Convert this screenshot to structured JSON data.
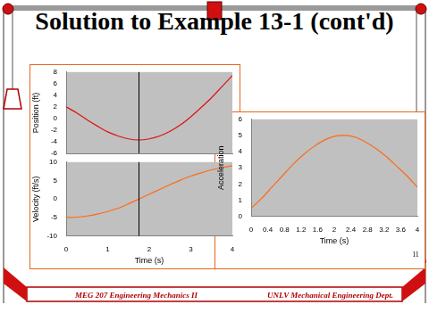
{
  "title": "Solution to Example 13-1 (cont'd)",
  "footer_left": "MEG 207 Engineering Mechanics II",
  "footer_right": "UNLV Mechanical Engineering Dept.",
  "page_number": "11",
  "chart_data": [
    {
      "type": "line",
      "y_label": "Position (ft)",
      "x": [
        0,
        0.25,
        0.5,
        0.75,
        1,
        1.25,
        1.5,
        1.75,
        2,
        2.25,
        2.5,
        2.75,
        3,
        3.25,
        3.5,
        3.75,
        4
      ],
      "values": [
        2.0,
        1.0,
        -0.2,
        -1.3,
        -2.3,
        -3.0,
        -3.5,
        -3.7,
        -3.5,
        -3.0,
        -2.2,
        -1.1,
        0.3,
        1.9,
        3.6,
        5.5,
        7.4
      ],
      "color": "#e01010",
      "xlim": [
        0,
        4
      ],
      "ylim": [
        -6,
        8
      ],
      "yticks": [
        -6,
        -4,
        -2,
        0,
        2,
        4,
        6,
        8
      ],
      "grid": false,
      "tick_labels": "y",
      "vline_x": 1.75
    },
    {
      "type": "line",
      "y_label": "Velocity (ft/s)",
      "x_label": "Time (s)",
      "x": [
        0,
        0.25,
        0.5,
        0.75,
        1,
        1.25,
        1.5,
        1.75,
        2,
        2.25,
        2.5,
        2.75,
        3,
        3.25,
        3.5,
        3.75,
        4
      ],
      "values": [
        -5.0,
        -4.9,
        -4.6,
        -4.1,
        -3.4,
        -2.5,
        -1.3,
        0.0,
        1.3,
        2.6,
        3.9,
        5.1,
        6.2,
        7.1,
        7.9,
        8.5,
        9.0
      ],
      "color": "#ff6a13",
      "xlim": [
        0,
        4
      ],
      "ylim": [
        -10,
        10
      ],
      "xticks": [
        0,
        1,
        2,
        3,
        4
      ],
      "yticks": [
        -10,
        -5,
        0,
        5,
        10
      ],
      "grid": false,
      "vline_x": 1.75
    },
    {
      "type": "line",
      "y_label": "Acceleration",
      "x_label": "Time (s)",
      "x": [
        0,
        0.25,
        0.5,
        0.75,
        1,
        1.25,
        1.5,
        1.75,
        2,
        2.25,
        2.5,
        2.75,
        3,
        3.25,
        3.5,
        3.75,
        4
      ],
      "values": [
        0.5,
        1.1,
        1.8,
        2.5,
        3.2,
        3.8,
        4.3,
        4.7,
        4.95,
        5.0,
        4.9,
        4.6,
        4.2,
        3.7,
        3.1,
        2.5,
        1.8
      ],
      "color": "#ff6a13",
      "xlim": [
        0,
        4
      ],
      "ylim": [
        0,
        6
      ],
      "xticks": [
        0,
        0.4,
        0.8,
        1.2,
        1.6,
        2,
        2.4,
        2.8,
        3.2,
        3.6,
        4
      ],
      "yticks": [
        0,
        1,
        2,
        3,
        4,
        5,
        6
      ],
      "grid": false
    }
  ]
}
